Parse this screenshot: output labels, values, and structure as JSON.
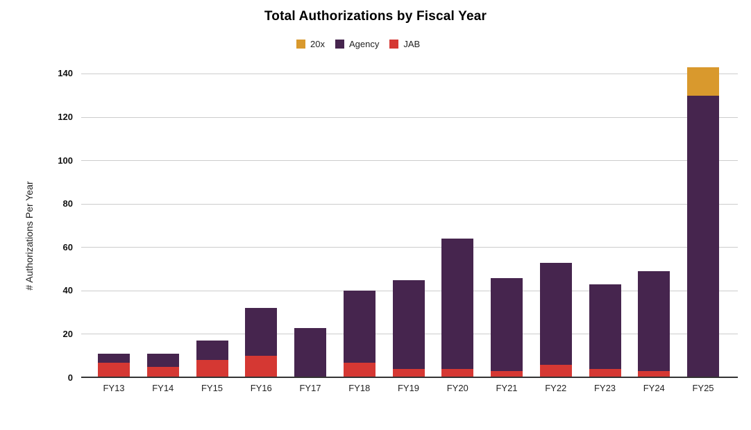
{
  "title": "Total Authorizations by Fiscal Year",
  "legend": {
    "items": [
      {
        "label": "20x",
        "color": "#D9992D"
      },
      {
        "label": "Agency",
        "color": "#46254E"
      },
      {
        "label": "JAB",
        "color": "#D53833"
      }
    ]
  },
  "y_axis": {
    "title": "# Authorizations Per Year",
    "ticks": [
      "0",
      "20",
      "40",
      "60",
      "80",
      "100",
      "120",
      "140"
    ]
  },
  "x_axis": {
    "ticks": [
      "FY13",
      "FY14",
      "FY15",
      "FY16",
      "FY17",
      "FY18",
      "FY19",
      "FY20",
      "FY21",
      "FY22",
      "FY23",
      "FY24",
      "FY25"
    ]
  },
  "colors": {
    "gridline": "#CCCCCC",
    "baseline": "#333333"
  },
  "chart_data": {
    "type": "bar",
    "stacked": true,
    "title": "Total Authorizations by Fiscal Year",
    "xlabel": "",
    "ylabel": "# Authorizations Per Year",
    "ylim": [
      0,
      140
    ],
    "y_tick_step": 20,
    "grid": true,
    "legend_position": "top",
    "legend_order": [
      "20x",
      "Agency",
      "JAB"
    ],
    "categories": [
      "FY13",
      "FY14",
      "FY15",
      "FY16",
      "FY17",
      "FY18",
      "FY19",
      "FY20",
      "FY21",
      "FY22",
      "FY23",
      "FY24",
      "FY25"
    ],
    "series": [
      {
        "name": "JAB",
        "color": "#D53833",
        "values": [
          7,
          5,
          8,
          10,
          0,
          7,
          4,
          4,
          3,
          6,
          4,
          3,
          0
        ]
      },
      {
        "name": "Agency",
        "color": "#46254E",
        "values": [
          4,
          6,
          9,
          22,
          23,
          33,
          41,
          60,
          43,
          47,
          39,
          46,
          130
        ]
      },
      {
        "name": "20x",
        "color": "#D9992D",
        "values": [
          0,
          0,
          0,
          0,
          0,
          0,
          0,
          0,
          0,
          0,
          0,
          0,
          13
        ]
      }
    ],
    "totals": [
      11,
      11,
      17,
      32,
      23,
      40,
      45,
      64,
      46,
      53,
      43,
      49,
      143
    ]
  }
}
